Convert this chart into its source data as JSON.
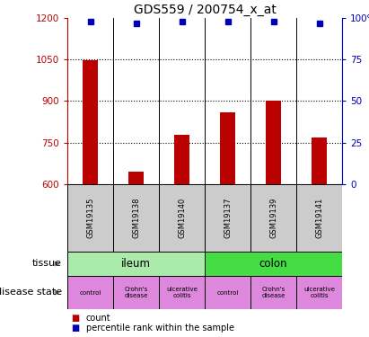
{
  "title": "GDS559 / 200754_x_at",
  "samples": [
    "GSM19135",
    "GSM19138",
    "GSM19140",
    "GSM19137",
    "GSM19139",
    "GSM19141"
  ],
  "counts": [
    1047,
    645,
    778,
    858,
    900,
    770
  ],
  "percentiles": [
    98,
    97,
    98,
    98,
    98,
    97
  ],
  "ymin": 600,
  "ymax": 1200,
  "yticks": [
    600,
    750,
    900,
    1050,
    1200
  ],
  "ytick_labels": [
    "600",
    "750",
    "900",
    "1050",
    "1200"
  ],
  "right_yticks": [
    0,
    25,
    50,
    75,
    100
  ],
  "right_ytick_labels": [
    "0",
    "25",
    "50",
    "75",
    "100%"
  ],
  "bar_color": "#bb0000",
  "dot_color": "#0000bb",
  "tissue_labels": [
    "ileum",
    "colon"
  ],
  "tissue_colors": [
    "#aaeaaa",
    "#44dd44"
  ],
  "disease_labels": [
    "control",
    "Crohn's\ndisease",
    "ulcerative\ncolitis",
    "control",
    "Crohn's\ndisease",
    "ulcerative\ncolitis"
  ],
  "disease_color": "#dd88dd",
  "sample_bg_color": "#cccccc",
  "title_fontsize": 10,
  "tick_fontsize": 7.5,
  "bar_width": 0.35,
  "dot_size": 4
}
